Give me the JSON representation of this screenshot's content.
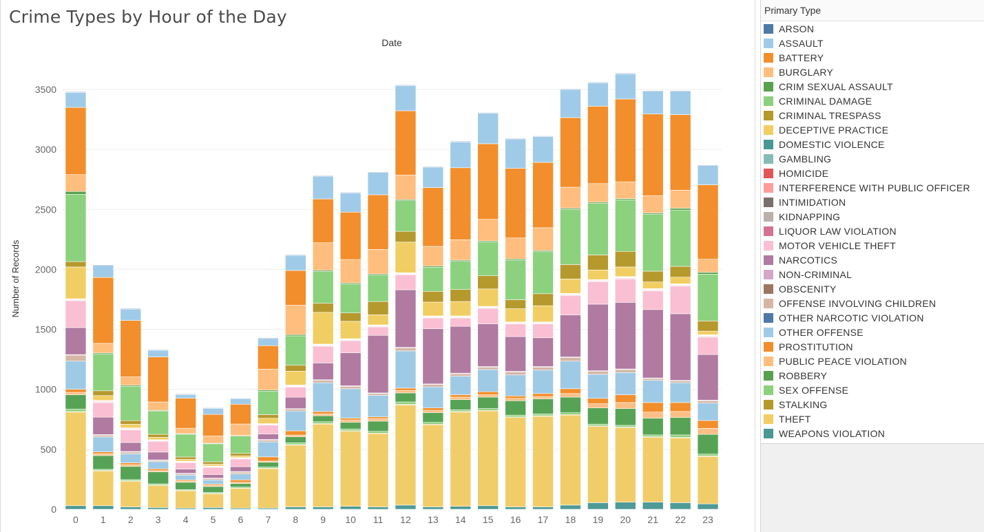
{
  "title": "Crime Types by Hour of the Day",
  "legend_title": "Primary Type",
  "chart_data": {
    "type": "bar",
    "stacked": true,
    "title": "Crime Types by Hour of the Day",
    "column_header": "Date",
    "ylabel": "Number of Records",
    "xlabel": "",
    "ylim": [
      0,
      3750
    ],
    "yticks": [
      0,
      500,
      1000,
      1500,
      2000,
      2500,
      3000,
      3500
    ],
    "grid": true,
    "legend_position": "right",
    "categories": [
      "0",
      "1",
      "2",
      "3",
      "4",
      "5",
      "6",
      "7",
      "8",
      "9",
      "10",
      "11",
      "12",
      "13",
      "14",
      "15",
      "16",
      "17",
      "18",
      "19",
      "20",
      "21",
      "22",
      "23"
    ],
    "series": [
      {
        "name": "WEAPONS VIOLATION",
        "color": "#4e9a96",
        "values": [
          30,
          30,
          20,
          15,
          10,
          15,
          10,
          10,
          20,
          20,
          25,
          20,
          35,
          20,
          25,
          30,
          20,
          20,
          35,
          55,
          60,
          60,
          55,
          45
        ]
      },
      {
        "name": "THEFT",
        "color": "#f1cd6a",
        "values": [
          780,
          290,
          215,
          185,
          145,
          115,
          165,
          330,
          515,
          690,
          625,
          610,
          835,
          685,
          785,
          790,
          745,
          755,
          750,
          635,
          620,
          540,
          540,
          395
        ]
      },
      {
        "name": "STALKING",
        "color": "#b89b33",
        "values": [
          5,
          3,
          2,
          2,
          2,
          2,
          2,
          2,
          4,
          5,
          5,
          5,
          5,
          5,
          5,
          5,
          5,
          5,
          5,
          5,
          5,
          5,
          5,
          5
        ]
      },
      {
        "name": "SEX OFFENSE",
        "color": "#8dd07b",
        "values": [
          20,
          10,
          10,
          10,
          8,
          8,
          8,
          10,
          15,
          15,
          15,
          15,
          20,
          15,
          15,
          15,
          15,
          15,
          15,
          15,
          15,
          15,
          20,
          15
        ]
      },
      {
        "name": "ROBBERY",
        "color": "#57a355",
        "values": [
          120,
          115,
          110,
          100,
          60,
          50,
          30,
          40,
          50,
          50,
          55,
          85,
          75,
          80,
          85,
          95,
          120,
          125,
          130,
          135,
          140,
          140,
          145,
          165
        ]
      },
      {
        "name": "PUBLIC PEACE VIOLATION",
        "color": "#fbbe84",
        "values": [
          20,
          15,
          15,
          10,
          10,
          10,
          10,
          10,
          15,
          15,
          20,
          20,
          20,
          20,
          20,
          20,
          20,
          20,
          30,
          35,
          50,
          50,
          50,
          50
        ]
      },
      {
        "name": "PROSTITUTION",
        "color": "#f28e2b",
        "values": [
          25,
          15,
          15,
          15,
          10,
          10,
          20,
          35,
          35,
          20,
          15,
          15,
          20,
          20,
          20,
          25,
          20,
          25,
          40,
          45,
          65,
          80,
          75,
          65
        ]
      },
      {
        "name": "OTHER OFFENSE",
        "color": "#9fcae5",
        "values": [
          235,
          125,
          75,
          60,
          40,
          35,
          50,
          125,
          165,
          240,
          245,
          180,
          310,
          175,
          155,
          185,
          175,
          195,
          230,
          200,
          185,
          185,
          165,
          145
        ]
      },
      {
        "name": "OTHER NARCOTIC VIOLATION",
        "color": "#4e79a7",
        "values": [
          0,
          0,
          0,
          0,
          0,
          0,
          0,
          0,
          0,
          0,
          0,
          0,
          0,
          0,
          0,
          0,
          0,
          0,
          0,
          0,
          0,
          0,
          0,
          0
        ]
      },
      {
        "name": "OFFENSE INVOLVING CHILDREN",
        "color": "#d4b7a6",
        "values": [
          50,
          15,
          15,
          10,
          10,
          10,
          15,
          15,
          15,
          20,
          20,
          15,
          25,
          20,
          20,
          20,
          25,
          25,
          30,
          25,
          25,
          15,
          15,
          20
        ]
      },
      {
        "name": "OBSCENITY",
        "color": "#9d7660",
        "values": [
          0,
          0,
          0,
          0,
          0,
          0,
          0,
          0,
          0,
          0,
          0,
          0,
          0,
          0,
          0,
          0,
          0,
          0,
          0,
          0,
          0,
          0,
          0,
          0
        ]
      },
      {
        "name": "NON-CRIMINAL",
        "color": "#d7b5d0",
        "values": [
          5,
          5,
          5,
          5,
          5,
          5,
          5,
          5,
          5,
          5,
          5,
          5,
          5,
          5,
          5,
          5,
          5,
          5,
          5,
          5,
          5,
          5,
          5,
          5
        ]
      },
      {
        "name": "NARCOTICS",
        "color": "#b07aa1",
        "values": [
          225,
          145,
          75,
          65,
          35,
          30,
          40,
          45,
          95,
          140,
          275,
          480,
          480,
          460,
          390,
          355,
          290,
          240,
          350,
          555,
          555,
          570,
          555,
          380
        ]
      },
      {
        "name": "MOTOR VEHICLE THEFT",
        "color": "#fabfd2",
        "values": [
          220,
          120,
          105,
          90,
          55,
          60,
          65,
          75,
          85,
          140,
          100,
          70,
          125,
          90,
          70,
          130,
          105,
          115,
          160,
          185,
          195,
          155,
          230,
          145
        ]
      },
      {
        "name": "LIQUOR LAW VIOLATION",
        "color": "#d37295",
        "values": [
          5,
          5,
          3,
          3,
          2,
          2,
          2,
          3,
          3,
          3,
          3,
          3,
          3,
          3,
          3,
          3,
          3,
          3,
          5,
          5,
          5,
          5,
          5,
          5
        ]
      },
      {
        "name": "KIDNAPPING",
        "color": "#bab0ac",
        "values": [
          5,
          5,
          5,
          3,
          3,
          3,
          3,
          3,
          5,
          5,
          5,
          5,
          5,
          5,
          5,
          5,
          5,
          5,
          5,
          5,
          5,
          5,
          5,
          5
        ]
      },
      {
        "name": "INTIMIDATION",
        "color": "#79706e",
        "values": [
          2,
          2,
          1,
          1,
          1,
          1,
          1,
          1,
          2,
          2,
          2,
          2,
          2,
          2,
          2,
          2,
          2,
          2,
          2,
          2,
          2,
          2,
          2,
          2
        ]
      },
      {
        "name": "INTERFERENCE WITH PUBLIC OFFICER",
        "color": "#ff9d9a",
        "values": [
          5,
          5,
          5,
          3,
          3,
          3,
          3,
          3,
          5,
          5,
          5,
          5,
          5,
          5,
          5,
          5,
          5,
          5,
          5,
          5,
          5,
          5,
          5,
          5
        ]
      },
      {
        "name": "HOMICIDE",
        "color": "#e15759",
        "values": [
          2,
          2,
          2,
          2,
          1,
          1,
          1,
          1,
          1,
          1,
          1,
          1,
          1,
          1,
          1,
          1,
          1,
          1,
          2,
          2,
          2,
          2,
          2,
          2
        ]
      },
      {
        "name": "GAMBLING",
        "color": "#86bcb6",
        "values": [
          1,
          1,
          1,
          1,
          1,
          1,
          1,
          1,
          1,
          1,
          1,
          1,
          1,
          1,
          1,
          1,
          1,
          1,
          1,
          1,
          1,
          1,
          1,
          1
        ]
      },
      {
        "name": "DOMESTIC VIOLENCE",
        "color": "#499894",
        "values": [
          0,
          0,
          0,
          0,
          0,
          0,
          0,
          0,
          0,
          0,
          0,
          0,
          0,
          0,
          0,
          0,
          0,
          0,
          0,
          0,
          0,
          0,
          0,
          0
        ]
      },
      {
        "name": "DECEPTIVE PRACTICE",
        "color": "#f1ce63",
        "values": [
          265,
          40,
          30,
          20,
          15,
          15,
          15,
          45,
          115,
          265,
          145,
          85,
          255,
          115,
          120,
          145,
          110,
          135,
          120,
          80,
          80,
          55,
          55,
          30
        ]
      },
      {
        "name": "CRIMINAL TRESPASS",
        "color": "#b6992d",
        "values": [
          45,
          40,
          30,
          25,
          20,
          20,
          20,
          30,
          50,
          75,
          70,
          110,
          90,
          90,
          100,
          110,
          75,
          100,
          120,
          125,
          130,
          90,
          90,
          85
        ]
      },
      {
        "name": "CRIMINAL DAMAGE",
        "color": "#8cd17d",
        "values": [
          560,
          305,
          285,
          195,
          190,
          150,
          145,
          195,
          245,
          265,
          240,
          220,
          255,
          200,
          235,
          280,
          330,
          350,
          460,
          430,
          430,
          475,
          470,
          390
        ]
      },
      {
        "name": "CRIM SEXUAL ASSAULT",
        "color": "#59a14f",
        "values": [
          25,
          10,
          10,
          5,
          5,
          5,
          5,
          10,
          10,
          10,
          10,
          10,
          10,
          10,
          10,
          10,
          10,
          10,
          10,
          10,
          10,
          10,
          15,
          15
        ]
      },
      {
        "name": "BURGLARY",
        "color": "#ffbe7d",
        "values": [
          140,
          80,
          70,
          70,
          45,
          60,
          95,
          175,
          245,
          230,
          195,
          205,
          205,
          165,
          170,
          180,
          175,
          190,
          175,
          155,
          140,
          145,
          150,
          110
        ]
      },
      {
        "name": "BATTERY",
        "color": "#f28e2b",
        "values": [
          560,
          550,
          470,
          375,
          250,
          180,
          165,
          195,
          290,
          365,
          395,
          455,
          535,
          490,
          600,
          630,
          580,
          545,
          580,
          645,
          690,
          680,
          630,
          620
        ]
      },
      {
        "name": "ASSAULT",
        "color": "#a0cbe8",
        "values": [
          125,
          100,
          95,
          55,
          30,
          50,
          45,
          60,
          125,
          190,
          160,
          185,
          210,
          170,
          215,
          255,
          245,
          215,
          235,
          195,
          210,
          190,
          195,
          160
        ]
      },
      {
        "name": "ARSON",
        "color": "#4e79a7",
        "values": [
          5,
          5,
          5,
          5,
          5,
          5,
          5,
          5,
          5,
          5,
          5,
          5,
          5,
          5,
          5,
          5,
          5,
          5,
          5,
          5,
          5,
          5,
          5,
          5
        ]
      }
    ]
  },
  "legend": [
    {
      "label": "ARSON",
      "color": "#4e79a7"
    },
    {
      "label": "ASSAULT",
      "color": "#a0cbe8"
    },
    {
      "label": "BATTERY",
      "color": "#f28e2b"
    },
    {
      "label": "BURGLARY",
      "color": "#ffbe7d"
    },
    {
      "label": "CRIM SEXUAL ASSAULT",
      "color": "#59a14f"
    },
    {
      "label": "CRIMINAL DAMAGE",
      "color": "#8cd17d"
    },
    {
      "label": "CRIMINAL TRESPASS",
      "color": "#b6992d"
    },
    {
      "label": "DECEPTIVE PRACTICE",
      "color": "#f1ce63"
    },
    {
      "label": "DOMESTIC VIOLENCE",
      "color": "#499894"
    },
    {
      "label": "GAMBLING",
      "color": "#86bcb6"
    },
    {
      "label": "HOMICIDE",
      "color": "#e15759"
    },
    {
      "label": "INTERFERENCE WITH PUBLIC OFFICER",
      "color": "#ff9d9a"
    },
    {
      "label": "INTIMIDATION",
      "color": "#79706e"
    },
    {
      "label": "KIDNAPPING",
      "color": "#bab0ac"
    },
    {
      "label": "LIQUOR LAW VIOLATION",
      "color": "#d37295"
    },
    {
      "label": "MOTOR VEHICLE THEFT",
      "color": "#fabfd2"
    },
    {
      "label": "NARCOTICS",
      "color": "#b07aa1"
    },
    {
      "label": "NON-CRIMINAL",
      "color": "#d4a6c8"
    },
    {
      "label": "OBSCENITY",
      "color": "#9d7660"
    },
    {
      "label": "OFFENSE INVOLVING CHILDREN",
      "color": "#d7b5a6"
    },
    {
      "label": "OTHER NARCOTIC VIOLATION",
      "color": "#4e79a7"
    },
    {
      "label": "OTHER OFFENSE",
      "color": "#a0cbe8"
    },
    {
      "label": "PROSTITUTION",
      "color": "#f28e2b"
    },
    {
      "label": "PUBLIC PEACE VIOLATION",
      "color": "#ffbe7d"
    },
    {
      "label": "ROBBERY",
      "color": "#59a14f"
    },
    {
      "label": "SEX OFFENSE",
      "color": "#8cd17d"
    },
    {
      "label": "STALKING",
      "color": "#b6992d"
    },
    {
      "label": "THEFT",
      "color": "#f1ce63"
    },
    {
      "label": "WEAPONS VIOLATION",
      "color": "#499894"
    }
  ]
}
